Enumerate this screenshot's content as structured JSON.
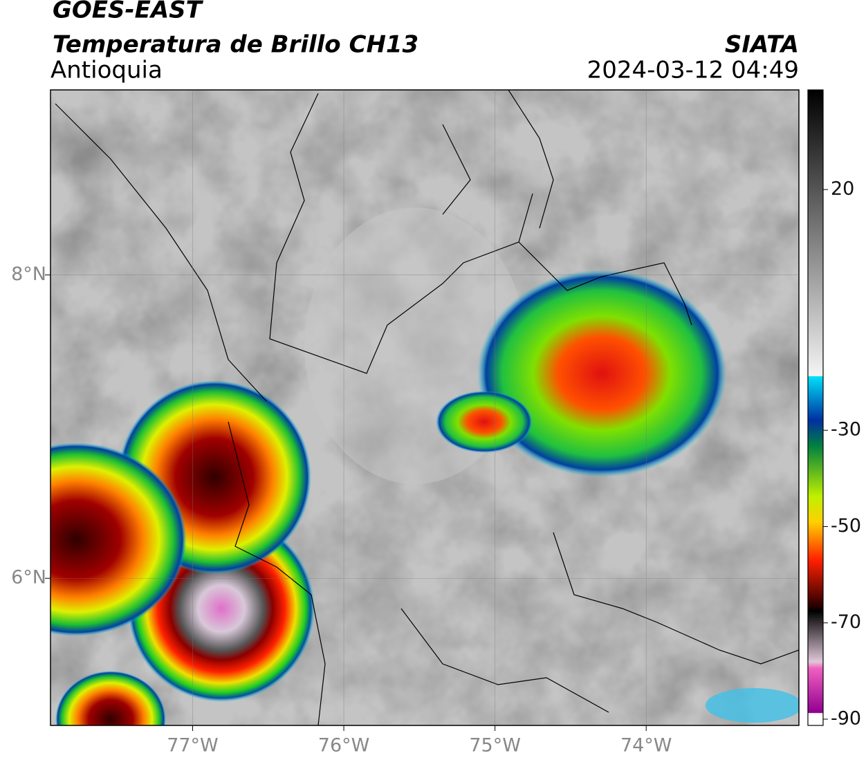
{
  "header": {
    "title": "GOES-EAST",
    "subtitle": "Temperatura de Brillo CH13",
    "region": "Antioquia",
    "source": "SIATA",
    "datetime": "2024-03-12 04:49"
  },
  "map": {
    "xlim": [
      -77.94,
      -72.99
    ],
    "ylim": [
      5.03,
      9.22
    ],
    "xticks": [
      {
        "value": -77,
        "label": "77°W"
      },
      {
        "value": -76,
        "label": "76°W"
      },
      {
        "value": -75,
        "label": "75°W"
      },
      {
        "value": -74,
        "label": "74°W"
      }
    ],
    "yticks": [
      {
        "value": 8,
        "label": "8°N"
      },
      {
        "value": 6,
        "label": "6°N"
      }
    ]
  },
  "colorbar": {
    "lim": [
      -91.3,
      40.7
    ],
    "ticks": [
      20,
      -30,
      -50,
      -70,
      -90
    ]
  }
}
